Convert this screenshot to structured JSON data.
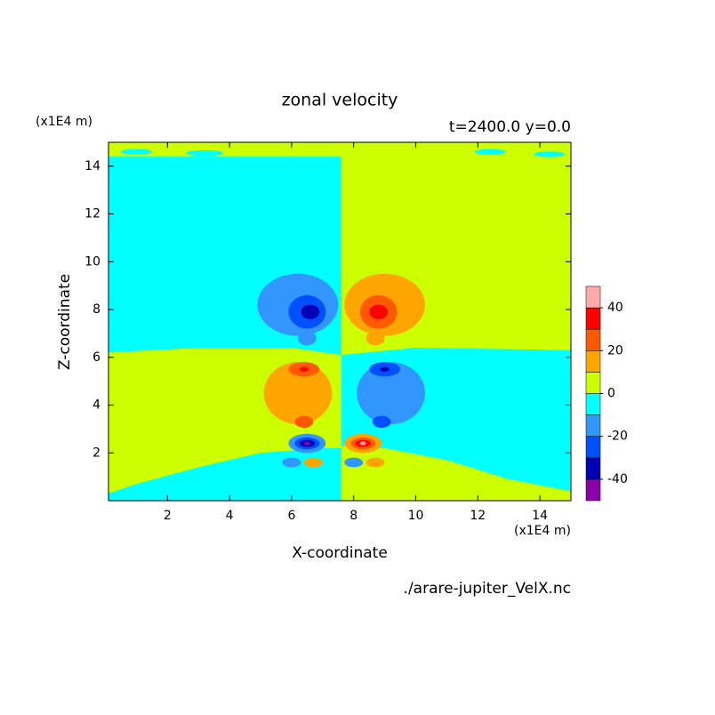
{
  "chart_data": {
    "type": "contour",
    "title": "zonal velocity",
    "subtitle": "t=2400.0 y=0.0",
    "x_label": "X-coordinate",
    "y_label": "Z-coordinate",
    "x_unit": "(x1E4 m)",
    "y_unit": "(x1E4 m)",
    "footer": "./arare-jupiter_VelX.nc",
    "xlim": [
      0.1,
      15
    ],
    "ylim": [
      0,
      15
    ],
    "xticks": [
      2,
      4,
      6,
      8,
      10,
      12,
      14
    ],
    "yticks": [
      2,
      4,
      6,
      8,
      10,
      12,
      14
    ],
    "colorbar": {
      "levels": [
        -50,
        -40,
        -30,
        -20,
        -10,
        0,
        10,
        20,
        30,
        40,
        50
      ],
      "colors": [
        "#8c00aa",
        "#0000b4",
        "#0050ff",
        "#3296ff",
        "#00ffff",
        "#ccff00",
        "#ffa500",
        "#ff5a00",
        "#ff0000",
        "#ffaaaa"
      ],
      "ticks": [
        -40,
        -20,
        0,
        20,
        40
      ]
    },
    "regions": [
      {
        "value": 5,
        "x": [
          0.1,
          15,
          15,
          0.1
        ],
        "z": [
          0,
          0,
          15,
          15
        ]
      },
      {
        "value": -5,
        "x": [
          0.1,
          3,
          6,
          7.6,
          7.6,
          0.1
        ],
        "z": [
          6.2,
          6.4,
          6.4,
          6.1,
          14.4,
          14.4
        ]
      },
      {
        "value": -5,
        "x": [
          7.6,
          10,
          15,
          15,
          13,
          11,
          9,
          7.6
        ],
        "z": [
          6.1,
          6.4,
          6.3,
          0.4,
          0.9,
          1.7,
          2.2,
          2.3
        ]
      },
      {
        "value": -5,
        "x": [
          0.1,
          1,
          3,
          5,
          7,
          7.6,
          7.6,
          0.1
        ],
        "z": [
          0.3,
          0.7,
          1.4,
          2.0,
          2.2,
          2.2,
          0,
          0
        ]
      }
    ],
    "blobs": [
      {
        "value": -5,
        "x": 1.0,
        "z": 14.6,
        "rx": 0.5,
        "rz": 0.12
      },
      {
        "value": -5,
        "x": 3.2,
        "z": 14.55,
        "rx": 0.6,
        "rz": 0.12
      },
      {
        "value": -5,
        "x": 12.4,
        "z": 14.6,
        "rx": 0.5,
        "rz": 0.12
      },
      {
        "value": -5,
        "x": 14.3,
        "z": 14.5,
        "rx": 0.5,
        "rz": 0.12
      },
      {
        "value": -15,
        "x": 6.2,
        "z": 8.2,
        "rx": 1.3,
        "rz": 1.3
      },
      {
        "value": -25,
        "x": 6.5,
        "z": 7.9,
        "rx": 0.6,
        "rz": 0.7
      },
      {
        "value": -35,
        "x": 6.6,
        "z": 7.9,
        "rx": 0.3,
        "rz": 0.3
      },
      {
        "value": -15,
        "x": 6.5,
        "z": 6.8,
        "rx": 0.3,
        "rz": 0.3
      },
      {
        "value": 15,
        "x": 9.0,
        "z": 8.2,
        "rx": 1.3,
        "rz": 1.3
      },
      {
        "value": 25,
        "x": 8.8,
        "z": 7.9,
        "rx": 0.6,
        "rz": 0.7
      },
      {
        "value": 35,
        "x": 8.8,
        "z": 7.9,
        "rx": 0.3,
        "rz": 0.3
      },
      {
        "value": 15,
        "x": 8.7,
        "z": 6.8,
        "rx": 0.3,
        "rz": 0.3
      },
      {
        "value": 15,
        "x": 6.2,
        "z": 4.5,
        "rx": 1.1,
        "rz": 1.3
      },
      {
        "value": 25,
        "x": 6.4,
        "z": 5.5,
        "rx": 0.5,
        "rz": 0.3
      },
      {
        "value": 35,
        "x": 6.4,
        "z": 5.5,
        "rx": 0.15,
        "rz": 0.1
      },
      {
        "value": 25,
        "x": 6.4,
        "z": 3.3,
        "rx": 0.3,
        "rz": 0.25
      },
      {
        "value": -15,
        "x": 9.2,
        "z": 4.5,
        "rx": 1.1,
        "rz": 1.3
      },
      {
        "value": -25,
        "x": 9.0,
        "z": 5.5,
        "rx": 0.5,
        "rz": 0.3
      },
      {
        "value": -35,
        "x": 9.0,
        "z": 5.5,
        "rx": 0.15,
        "rz": 0.1
      },
      {
        "value": -25,
        "x": 8.9,
        "z": 3.3,
        "rx": 0.3,
        "rz": 0.25
      },
      {
        "value": -15,
        "x": 6.5,
        "z": 2.4,
        "rx": 0.6,
        "rz": 0.4
      },
      {
        "value": -25,
        "x": 6.5,
        "z": 2.4,
        "rx": 0.4,
        "rz": 0.25
      },
      {
        "value": -35,
        "x": 6.5,
        "z": 2.4,
        "rx": 0.25,
        "rz": 0.15
      },
      {
        "value": -45,
        "x": 6.5,
        "z": 2.4,
        "rx": 0.1,
        "rz": 0.08
      },
      {
        "value": 15,
        "x": 8.3,
        "z": 2.4,
        "rx": 0.6,
        "rz": 0.4
      },
      {
        "value": 25,
        "x": 8.3,
        "z": 2.4,
        "rx": 0.4,
        "rz": 0.25
      },
      {
        "value": 35,
        "x": 8.3,
        "z": 2.4,
        "rx": 0.25,
        "rz": 0.15
      },
      {
        "value": 45,
        "x": 8.3,
        "z": 2.4,
        "rx": 0.1,
        "rz": 0.08
      },
      {
        "value": -15,
        "x": 6.0,
        "z": 1.6,
        "rx": 0.3,
        "rz": 0.2
      },
      {
        "value": 15,
        "x": 6.7,
        "z": 1.6,
        "rx": 0.3,
        "rz": 0.2
      },
      {
        "value": -15,
        "x": 8.0,
        "z": 1.6,
        "rx": 0.3,
        "rz": 0.2
      },
      {
        "value": 15,
        "x": 8.7,
        "z": 1.6,
        "rx": 0.3,
        "rz": 0.2
      }
    ]
  }
}
